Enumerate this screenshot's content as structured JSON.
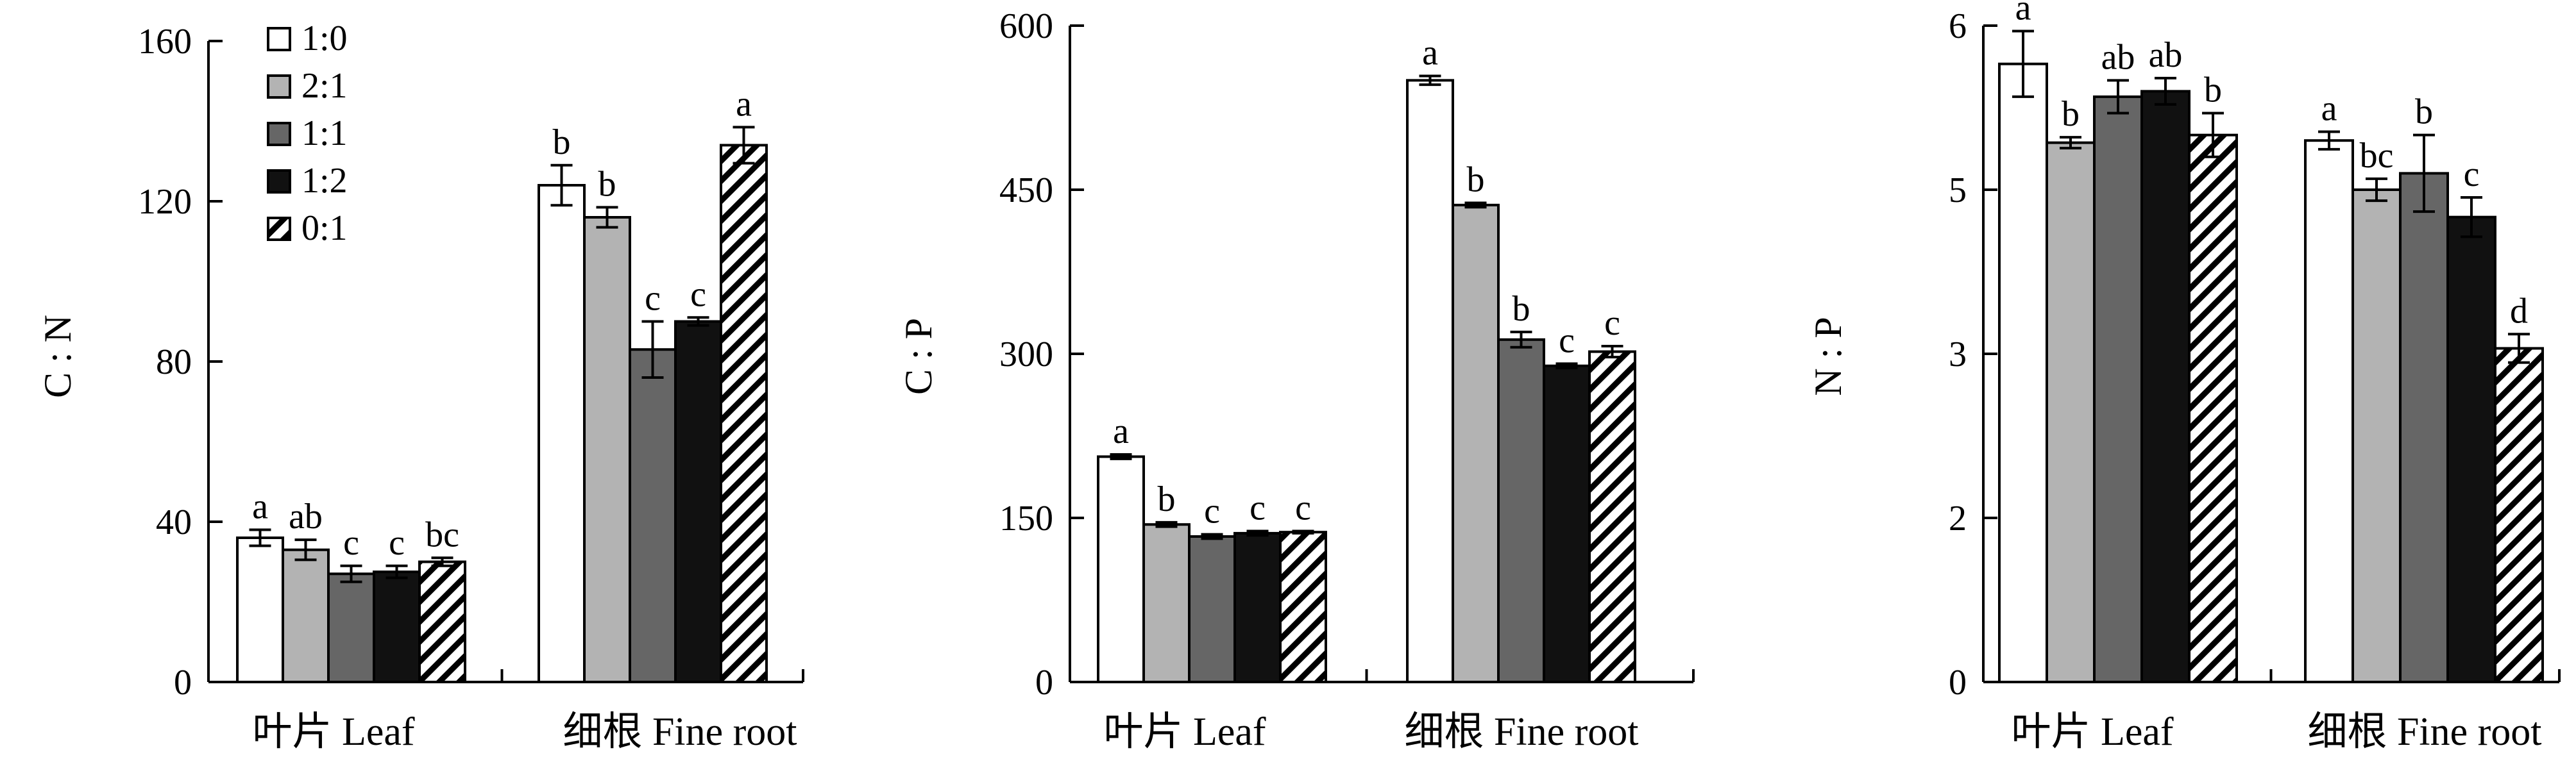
{
  "legend": {
    "entries": [
      {
        "name": "1:0",
        "fill": "#ffffff"
      },
      {
        "name": "2:1",
        "fill": "#b3b3b3"
      },
      {
        "name": "1:1",
        "fill": "#666666"
      },
      {
        "name": "1:2",
        "fill": "#111111"
      },
      {
        "name": "0:1",
        "fill": "hatch"
      }
    ]
  },
  "chart_data": [
    {
      "type": "bar",
      "title": "",
      "xlabel": "",
      "ylabel": "C : N",
      "ylim": [
        0,
        160
      ],
      "yticks": [
        "0",
        "40",
        "80",
        "120",
        "160"
      ],
      "categories": [
        "叶片 Leaf",
        "细根 Fine root"
      ],
      "series": [
        {
          "name": "1:0",
          "values": [
            36,
            124
          ],
          "errors": [
            2,
            5
          ],
          "labels": [
            "a",
            "b"
          ]
        },
        {
          "name": "2:1",
          "values": [
            33,
            116
          ],
          "errors": [
            2.5,
            2.5
          ],
          "labels": [
            "ab",
            "b"
          ]
        },
        {
          "name": "1:1",
          "values": [
            27,
            83
          ],
          "errors": [
            2,
            7
          ],
          "labels": [
            "c",
            "c"
          ]
        },
        {
          "name": "1:2",
          "values": [
            27.5,
            90
          ],
          "errors": [
            1.5,
            1
          ],
          "labels": [
            "c",
            "c"
          ]
        },
        {
          "name": "0:1",
          "values": [
            30,
            134
          ],
          "errors": [
            1,
            4.5
          ],
          "labels": [
            "bc",
            "a"
          ]
        }
      ]
    },
    {
      "type": "bar",
      "title": "",
      "xlabel": "",
      "ylabel": "C : P",
      "ylim": [
        0,
        600
      ],
      "yticks": [
        "0",
        "150",
        "300",
        "450",
        "600"
      ],
      "categories": [
        "叶片 Leaf",
        "细根 Fine root"
      ],
      "series": [
        {
          "name": "1:0",
          "values": [
            206,
            550
          ],
          "errors": [
            2,
            4
          ],
          "labels": [
            "a",
            "a"
          ]
        },
        {
          "name": "2:1",
          "values": [
            144,
            436
          ],
          "errors": [
            2,
            2
          ],
          "labels": [
            "b",
            "b"
          ]
        },
        {
          "name": "1:1",
          "values": [
            133,
            313
          ],
          "errors": [
            2,
            7
          ],
          "labels": [
            "c",
            "b"
          ]
        },
        {
          "name": "1:2",
          "values": [
            136,
            289
          ],
          "errors": [
            2,
            2
          ],
          "labels": [
            "c",
            "c"
          ]
        },
        {
          "name": "0:1",
          "values": [
            137,
            302
          ],
          "errors": [
            1,
            5
          ],
          "labels": [
            "c",
            "c"
          ]
        }
      ]
    },
    {
      "type": "bar",
      "title": "",
      "xlabel": "",
      "ylabel": "N : P",
      "ylim": [
        0,
        6
      ],
      "yticks": [
        "0",
        "2",
        "3",
        "5",
        "6"
      ],
      "categories": [
        "叶片 Leaf",
        "细根 Fine root"
      ],
      "series": [
        {
          "name": "1:0",
          "values": [
            5.65,
            4.95
          ],
          "errors": [
            0.3,
            0.08
          ],
          "labels": [
            "a",
            "a"
          ]
        },
        {
          "name": "2:1",
          "values": [
            4.93,
            4.5
          ],
          "errors": [
            0.05,
            0.1
          ],
          "labels": [
            "b",
            "bc"
          ]
        },
        {
          "name": "1:1",
          "values": [
            5.35,
            4.65
          ],
          "errors": [
            0.15,
            0.35
          ],
          "labels": [
            "ab",
            "b"
          ]
        },
        {
          "name": "1:2",
          "values": [
            5.4,
            4.25
          ],
          "errors": [
            0.12,
            0.18
          ],
          "labels": [
            "ab",
            "c"
          ]
        },
        {
          "name": "0:1",
          "values": [
            5.0,
            3.05
          ],
          "errors": [
            0.2,
            0.13
          ],
          "labels": [
            "b",
            "d"
          ]
        }
      ]
    }
  ]
}
